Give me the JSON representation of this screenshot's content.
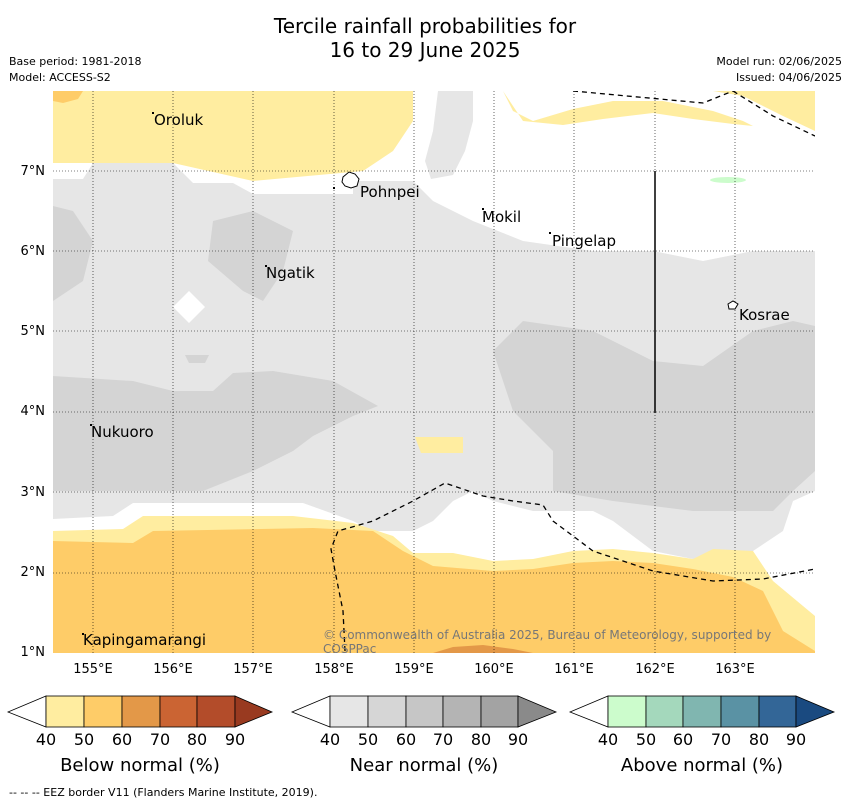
{
  "header": {
    "title_line1": "Tercile rainfall probabilities for",
    "title_line2": "16 to 29 June 2025",
    "base_period": "Base period: 1981-2018",
    "model": "Model: ACCESS-S2",
    "model_run": "Model run: 02/06/2025",
    "issued": "Issued: 04/06/2025"
  },
  "map": {
    "y_ticks": [
      "7°N",
      "6°N",
      "5°N",
      "4°N",
      "3°N",
      "2°N",
      "1°N"
    ],
    "x_ticks": [
      "155°E",
      "156°E",
      "157°E",
      "158°E",
      "159°E",
      "160°E",
      "161°E",
      "162°E",
      "163°E"
    ],
    "places": {
      "oroluk": "Oroluk",
      "pohnpei": "Pohnpei",
      "mokil": "Mokil",
      "pingelap": "Pingelap",
      "ngatik": "Ngatik",
      "kosrae": "Kosrae",
      "nukuoro": "Nukuoro",
      "kapingamarangi": "Kapingamarangi"
    },
    "copyright": "© Commonwealth of Australia 2025, Bureau of Meteorology, supported by COSPPac"
  },
  "colorbars": [
    {
      "label": "Below normal (%)",
      "ticks": [
        "40",
        "50",
        "60",
        "70",
        "80",
        "90"
      ],
      "colors": [
        "#ffeda0",
        "#fecc68",
        "#e39848",
        "#cb6433",
        "#b34c2a",
        "#993a20"
      ]
    },
    {
      "label": "Near normal (%)",
      "ticks": [
        "40",
        "50",
        "60",
        "70",
        "80",
        "90"
      ],
      "colors": [
        "#e6e6e6",
        "#d6d6d6",
        "#c6c6c6",
        "#b4b4b4",
        "#a3a3a3",
        "#8a8a8a"
      ]
    },
    {
      "label": "Above normal (%)",
      "ticks": [
        "40",
        "50",
        "60",
        "70",
        "80",
        "90"
      ],
      "colors": [
        "#ccfccc",
        "#a4d8bc",
        "#80b6b0",
        "#5a92a4",
        "#336697",
        "#1a4a80"
      ]
    }
  ],
  "footnote": "--  --  -- EEZ border V11 (Flanders Marine Institute, 2019)."
}
